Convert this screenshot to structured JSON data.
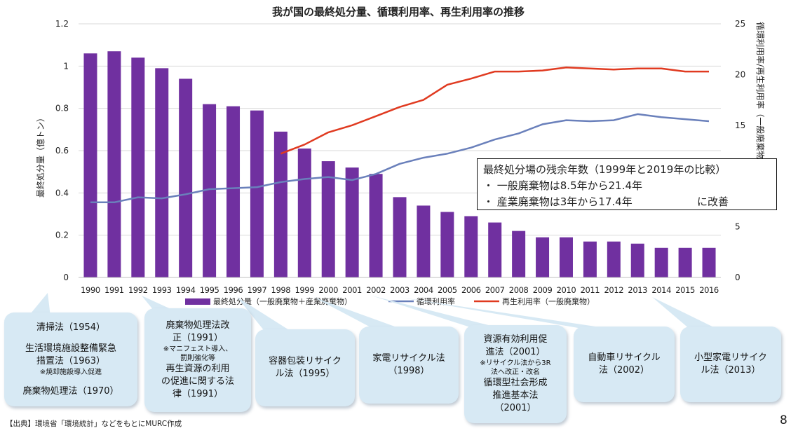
{
  "chart_data": {
    "type": "bar+line",
    "title": "我が国の最終処分量、循環利用率、再生利用率の推移",
    "categories": [
      "1990",
      "1991",
      "1992",
      "1993",
      "1994",
      "1995",
      "1996",
      "1997",
      "1998",
      "1999",
      "2000",
      "2001",
      "2002",
      "2003",
      "2004",
      "2005",
      "2006",
      "2007",
      "2008",
      "2009",
      "2010",
      "2011",
      "2012",
      "2013",
      "2014",
      "2015",
      "2016"
    ],
    "ylabel_left": "最終処分量（億トン）",
    "ylabel_right": "循環利用率/再生利用率（一般廃棄物）（%）",
    "ylim_left": [
      0,
      1.2
    ],
    "ylim_right": [
      0,
      25
    ],
    "yticks_left": [
      "0",
      "0.2",
      "0.4",
      "0.6",
      "0.8",
      "1",
      "1.2"
    ],
    "yticks_right": [
      "0",
      "5",
      "10",
      "15",
      "20",
      "25"
    ],
    "grid": true,
    "legend_position": "bottom",
    "series": [
      {
        "name": "最終処分量（一般廃棄物＋産業廃棄物）",
        "kind": "bar",
        "axis": "left",
        "color": "#7030a0",
        "values": [
          1.06,
          1.07,
          1.04,
          0.99,
          0.94,
          0.82,
          0.81,
          0.79,
          0.69,
          0.61,
          0.55,
          0.52,
          0.49,
          0.38,
          0.34,
          0.31,
          0.29,
          0.26,
          0.22,
          0.19,
          0.19,
          0.17,
          0.17,
          0.16,
          0.14,
          0.14,
          0.14
        ]
      },
      {
        "name": "循環利用率",
        "kind": "line",
        "axis": "right",
        "color": "#6a80bb",
        "values": [
          7.4,
          7.4,
          7.9,
          7.8,
          8.2,
          8.7,
          8.8,
          8.9,
          9.4,
          9.7,
          9.9,
          9.6,
          10.2,
          11.2,
          11.8,
          12.2,
          12.8,
          13.6,
          14.2,
          15.1,
          15.5,
          15.4,
          15.5,
          16.1,
          15.8,
          15.6,
          15.4
        ]
      },
      {
        "name": "再生利用率（一般廃棄物）",
        "kind": "line",
        "axis": "right",
        "color": "#e03a20",
        "values": [
          null,
          null,
          null,
          null,
          null,
          null,
          null,
          null,
          12.2,
          13.1,
          14.3,
          15.0,
          15.9,
          16.8,
          17.5,
          19.0,
          19.6,
          20.3,
          20.3,
          20.4,
          20.7,
          20.6,
          20.5,
          20.6,
          20.6,
          20.3,
          20.3
        ]
      }
    ]
  },
  "infobox": {
    "title": "最終処分場の残余年数（1999年と2019年の比較）",
    "line1": "・ 一般廃棄物は8.5年から21.4年",
    "line2": "・ 産業廃棄物は3年から17.4年",
    "suffix": "に改善"
  },
  "callouts": {
    "c1": {
      "l1": "清掃法（1954）",
      "l2": "生活環境施設整備緊急",
      "l3": "措置法（1963）",
      "l4": "※焼却施設導入促進",
      "l5": "廃棄物処理法（1970）"
    },
    "c2": {
      "l1": "廃棄物処理法改",
      "l2": "正（1991）",
      "l3": "※マニフェスト導入、",
      "l4": "罰則強化等",
      "l5": "再生資源の利用",
      "l6": "の促進に関する法",
      "l7": "律（1991）"
    },
    "c3": {
      "l1": "容器包装リサイク",
      "l2": "ル法（1995）"
    },
    "c4": {
      "l1": "家電リサイクル法",
      "l2": "（1998）"
    },
    "c5": {
      "l1": "資源有効利用促",
      "l2": "進法（2001）",
      "l3": "※リサイクル法から3R",
      "l4": "法へ改正・改名",
      "l5": "循環型社会形成",
      "l6": "推進基本法",
      "l7": "（2001）"
    },
    "c6": {
      "l1": "自動車リサイクル",
      "l2": "法（2002）"
    },
    "c7": {
      "l1": "小型家電リサイク",
      "l2": "ル法（2013）"
    }
  },
  "source": "【出典】環境省「環境統計」などをもとにMURC作成",
  "page_number": "8"
}
